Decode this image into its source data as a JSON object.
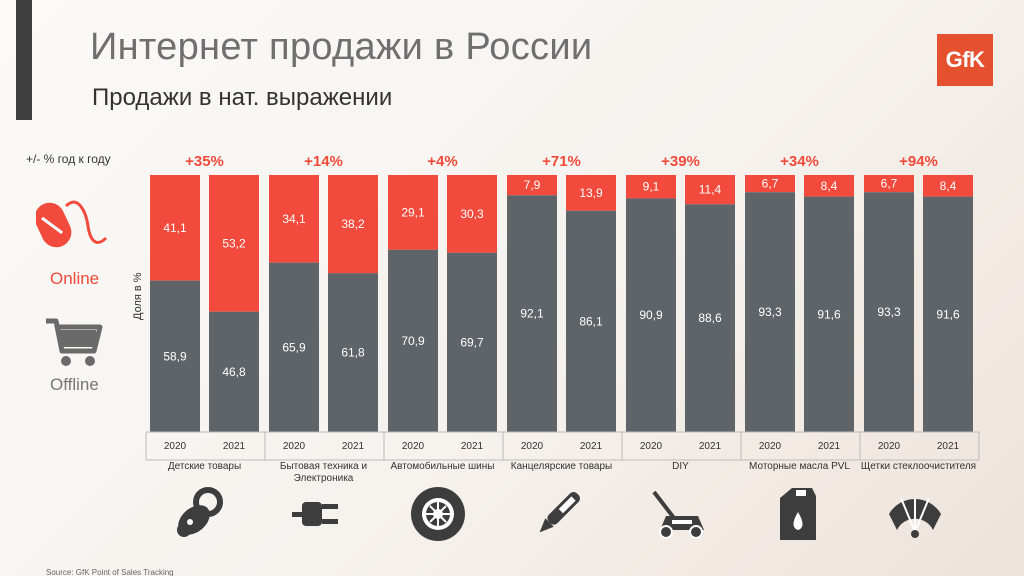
{
  "title": "Интернет продажи в России",
  "subtitle": "Продажи в нат. выражении",
  "logo_text": "GfK",
  "growth_label": "+/- % год к году",
  "legend": {
    "online": "Online",
    "offline": "Offline"
  },
  "yaxis_label": "Доля в %",
  "source": "Source: GfK Point of Sales Tracking",
  "colors": {
    "online": "#f24a3c",
    "offline": "#5f6469",
    "growth": "#ef4a3a",
    "text_light": "#ffffff"
  },
  "chart_data": {
    "type": "bar",
    "stacked": true,
    "ylabel": "Доля в %",
    "ylim": [
      0,
      100
    ],
    "categories": [
      {
        "name": "Детские товары",
        "growth": "+35%",
        "years": [
          "2020",
          "2021"
        ],
        "online": [
          41.1,
          53.2
        ],
        "offline": [
          58.9,
          46.8
        ],
        "online_labels": [
          "41,1",
          "53,2"
        ],
        "offline_labels": [
          "58,9",
          "46,8"
        ]
      },
      {
        "name": "Бытовая техника и Электроника",
        "growth": "+14%",
        "years": [
          "2020",
          "2021"
        ],
        "online": [
          34.1,
          38.2
        ],
        "offline": [
          65.9,
          61.8
        ],
        "online_labels": [
          "34,1",
          "38,2"
        ],
        "offline_labels": [
          "65,9",
          "61,8"
        ]
      },
      {
        "name": "Автомобильные шины",
        "growth": "+4%",
        "years": [
          "2020",
          "2021"
        ],
        "online": [
          29.1,
          30.3
        ],
        "offline": [
          70.9,
          69.7
        ],
        "online_labels": [
          "29,1",
          "30,3"
        ],
        "offline_labels": [
          "70,9",
          "69,7"
        ]
      },
      {
        "name": "Канцелярские товары",
        "growth": "+71%",
        "years": [
          "2020",
          "2021"
        ],
        "online": [
          7.9,
          13.9
        ],
        "offline": [
          92.1,
          86.1
        ],
        "online_labels": [
          "7,9",
          "13,9"
        ],
        "offline_labels": [
          "92,1",
          "86,1"
        ]
      },
      {
        "name": "DIY",
        "growth": "+39%",
        "years": [
          "2020",
          "2021"
        ],
        "online": [
          9.1,
          11.4
        ],
        "offline": [
          90.9,
          88.6
        ],
        "online_labels": [
          "9,1",
          "11,4"
        ],
        "offline_labels": [
          "90,9",
          "88,6"
        ]
      },
      {
        "name": "Моторные масла PVL",
        "growth": "+34%",
        "years": [
          "2020",
          "2021"
        ],
        "online": [
          6.7,
          8.4
        ],
        "offline": [
          93.3,
          91.6
        ],
        "online_labels": [
          "6,7",
          "8,4"
        ],
        "offline_labels": [
          "93,3",
          "91,6"
        ]
      },
      {
        "name": "Щетки стеклоочистителя",
        "growth": "+94%",
        "years": [
          "2020",
          "2021"
        ],
        "online": [
          6.7,
          8.4
        ],
        "offline": [
          93.3,
          91.6
        ],
        "online_labels": [
          "6,7",
          "8,4"
        ],
        "offline_labels": [
          "93,3",
          "91,6"
        ]
      }
    ],
    "series": [
      {
        "name": "Online"
      },
      {
        "name": "Offline"
      }
    ]
  },
  "category_icons": [
    "pacifier-icon",
    "plug-icon",
    "tire-icon",
    "pen-icon",
    "lawnmower-icon",
    "oil-canister-icon",
    "wiper-icon"
  ]
}
